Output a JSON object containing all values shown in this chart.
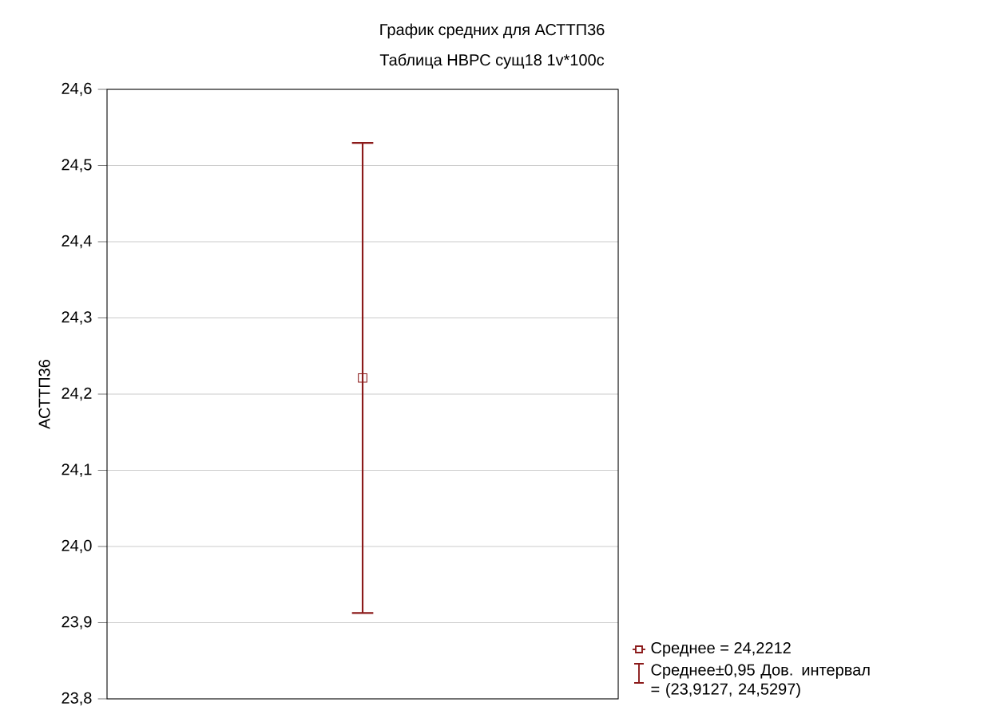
{
  "chart_data": {
    "type": "scatter",
    "title": "График средних для АСТТП36",
    "subtitle": "Таблица НВРС сущ18 1v*100с",
    "ylabel": "АСТТП36",
    "categories": [
      null
    ],
    "series": [
      {
        "name": "Среднее = 24,2212",
        "color": "#8b1a1a",
        "values": [
          24.2212
        ],
        "errors": [
          [
            23.9127,
            24.5297
          ]
        ]
      }
    ],
    "annotations": [
      "Среднее±0,95 Дов. интервал = (23,9127, 24,5297)"
    ],
    "ylim": [
      23.8,
      24.6
    ],
    "yticks": [
      {
        "value": 23.8,
        "label": "23,8"
      },
      {
        "value": 23.9,
        "label": "23,9"
      },
      {
        "value": 24.0,
        "label": "24,0"
      },
      {
        "value": 24.1,
        "label": "24,1"
      },
      {
        "value": 24.2,
        "label": "24,2"
      },
      {
        "value": 24.3,
        "label": "24,3"
      },
      {
        "value": 24.4,
        "label": "24,4"
      },
      {
        "value": 24.5,
        "label": "24,5"
      },
      {
        "value": 24.6,
        "label": "24,6"
      }
    ],
    "grid": "y",
    "legend": "bottom right",
    "marker": "square",
    "tick_labels": "y"
  }
}
